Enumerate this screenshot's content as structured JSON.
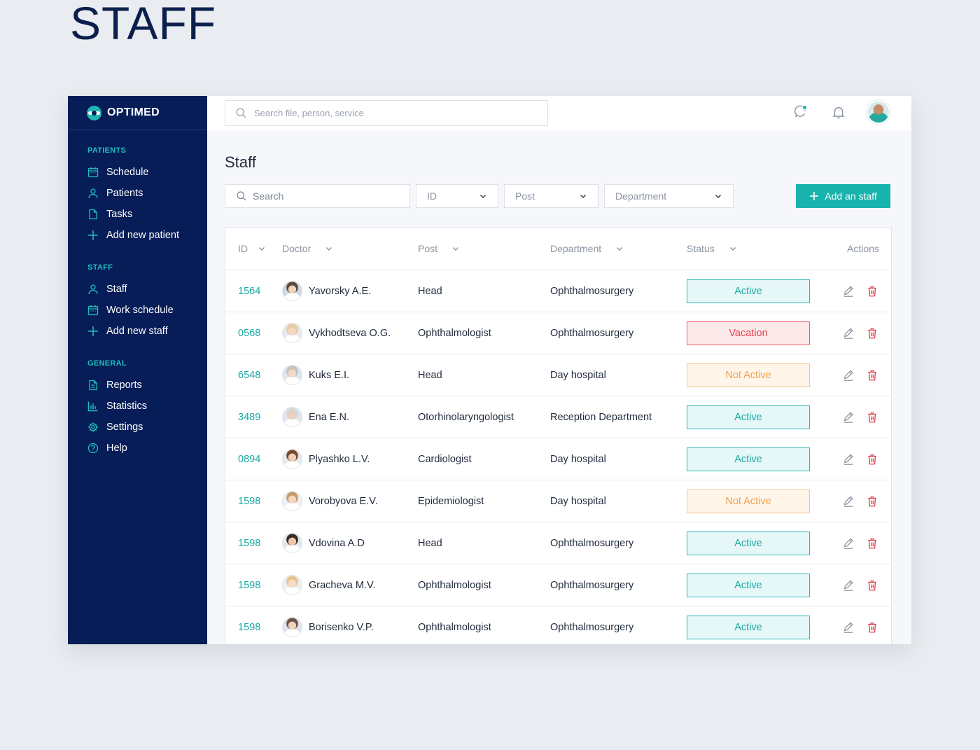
{
  "page_heading": "STAFF",
  "brand": {
    "name": "OPTIMED"
  },
  "sidebar": {
    "sections": [
      {
        "title": "PATIENTS",
        "items": [
          {
            "label": "Schedule",
            "icon": "calendar-icon"
          },
          {
            "label": "Patients",
            "icon": "user-icon"
          },
          {
            "label": "Tasks",
            "icon": "file-icon"
          },
          {
            "label": "Add new patient",
            "icon": "plus-icon"
          }
        ]
      },
      {
        "title": "STAFF",
        "items": [
          {
            "label": "Staff",
            "icon": "user-icon"
          },
          {
            "label": "Work schedule",
            "icon": "calendar-icon"
          },
          {
            "label": "Add new staff",
            "icon": "plus-icon"
          }
        ]
      },
      {
        "title": "GENERAL",
        "items": [
          {
            "label": "Reports",
            "icon": "report-icon"
          },
          {
            "label": "Statistics",
            "icon": "bar-chart-icon"
          },
          {
            "label": "Settings",
            "icon": "gear-icon"
          },
          {
            "label": "Help",
            "icon": "help-icon"
          }
        ]
      }
    ]
  },
  "topbar": {
    "search_placeholder": "Search file, person, service"
  },
  "main": {
    "title": "Staff",
    "filters": {
      "search_placeholder": "Search",
      "id": "ID",
      "post": "Post",
      "department": "Department"
    },
    "add_button": "Add an staff"
  },
  "table": {
    "headers": {
      "id": "ID",
      "doctor": "Doctor",
      "post": "Post",
      "department": "Department",
      "status": "Status",
      "actions": "Actions"
    },
    "rows": [
      {
        "id": "1564",
        "doctor": "Yavorsky A.E.",
        "post": "Head",
        "department": "Ophthalmosurgery",
        "status": "Active",
        "status_kind": "active"
      },
      {
        "id": "0568",
        "doctor": "Vykhodtseva O.G.",
        "post": "Ophthalmologist",
        "department": "Ophthalmosurgery",
        "status": "Vacation",
        "status_kind": "vacation"
      },
      {
        "id": "6548",
        "doctor": "Kuks E.I.",
        "post": "Head",
        "department": "Day hospital",
        "status": "Not Active",
        "status_kind": "notactive"
      },
      {
        "id": "3489",
        "doctor": "Ena E.N.",
        "post": "Otorhinolaryngologist",
        "department": "Reception Department",
        "status": "Active",
        "status_kind": "active"
      },
      {
        "id": "0894",
        "doctor": "Plyashko L.V.",
        "post": "Cardiologist",
        "department": "Day hospital",
        "status": "Active",
        "status_kind": "active"
      },
      {
        "id": "1598",
        "doctor": "Vorobyova E.V.",
        "post": "Epidemiologist",
        "department": "Day hospital",
        "status": "Not Active",
        "status_kind": "notactive"
      },
      {
        "id": "1598",
        "doctor": "Vdovina A.D",
        "post": "Head",
        "department": "Ophthalmosurgery",
        "status": "Active",
        "status_kind": "active"
      },
      {
        "id": "1598",
        "doctor": "Gracheva M.V.",
        "post": "Ophthalmologist",
        "department": "Ophthalmosurgery",
        "status": "Active",
        "status_kind": "active"
      },
      {
        "id": "1598",
        "doctor": "Borisenko V.P.",
        "post": "Ophthalmologist",
        "department": "Ophthalmosurgery",
        "status": "Active",
        "status_kind": "active"
      }
    ]
  },
  "colors": {
    "sidebar": "#061d58",
    "accent": "#19b3ad",
    "danger": "#e2424c",
    "warning": "#f2a04d"
  }
}
